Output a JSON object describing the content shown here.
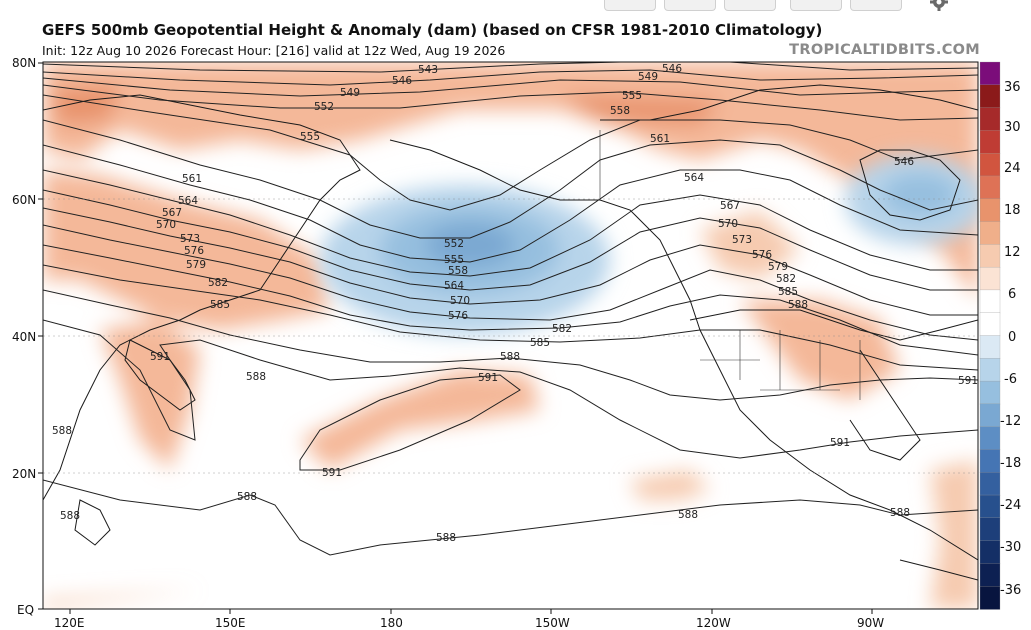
{
  "header": {
    "title": "GEFS 500mb Geopotential Height & Anomaly (dam) (based on CFSR 1981-2010 Climatology)",
    "subtitle": "Init: 12z Aug 10 2026   Forecast Hour: [216]   valid at 12z Wed, Aug 19 2026",
    "brand": "TROPICALTIDBITS.COM"
  },
  "toolbar": {
    "icons": [
      "toolbar-button",
      "toolbar-button",
      "toolbar-button",
      "toolbar-button",
      "toolbar-button",
      "gear-icon"
    ]
  },
  "map": {
    "lat_labels": [
      "80N",
      "60N",
      "40N",
      "20N",
      "EQ"
    ],
    "lon_labels": [
      "120E",
      "150E",
      "180",
      "150W",
      "120W",
      "90W"
    ],
    "contour_labels": [
      "543",
      "546",
      "549",
      "552",
      "555",
      "558",
      "561",
      "564",
      "567",
      "570",
      "573",
      "576",
      "579",
      "582",
      "585",
      "588",
      "591"
    ],
    "anomaly_colors": {
      "positive": "#f4b899",
      "positive_strong": "#e8936c",
      "negative": "#b7d4ea",
      "negative_strong": "#7aa8d2"
    }
  },
  "colorbar": {
    "ticks": [
      "36",
      "30",
      "24",
      "18",
      "12",
      "6",
      "0",
      "-6",
      "-12",
      "-18",
      "-24",
      "-30",
      "-36"
    ],
    "colors": [
      "#7b0d7a",
      "#8b1a1a",
      "#a62a2a",
      "#bf3c34",
      "#d1553f",
      "#de7256",
      "#e8936c",
      "#f0af8a",
      "#f6cbb0",
      "#fbe3d4",
      "#ffffff",
      "#ffffff",
      "#dbe9f4",
      "#b7d4ea",
      "#96bfdf",
      "#7aa8d2",
      "#5d8ec4",
      "#4575b4",
      "#34609f",
      "#27508d",
      "#1d3f7a",
      "#142f66",
      "#0d2052",
      "#08153f"
    ]
  }
}
